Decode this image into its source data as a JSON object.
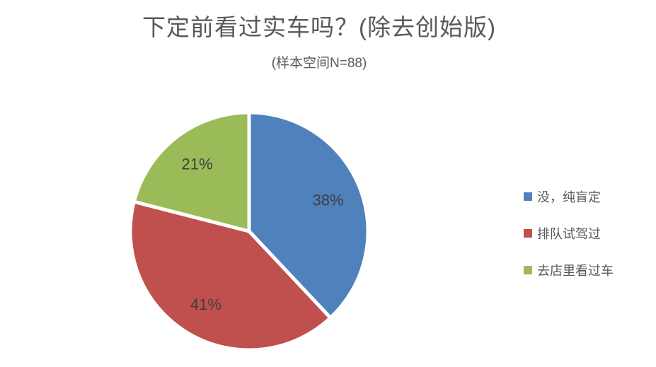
{
  "chart": {
    "title": "下定前看过实车吗？(除去创始版)",
    "subtitle": "(样本空间N=88)"
  },
  "chart_data": {
    "type": "pie",
    "title": "下定前看过实车吗？(除去创始版)",
    "subtitle": "(样本空间N=88)",
    "sample_size": 88,
    "unit": "percent",
    "start_angle_deg": 0,
    "direction": "clockwise",
    "legend_position": "right",
    "data_labels": "inside",
    "slices": [
      {
        "label": "没，纯盲定",
        "value": 38,
        "display": "38%",
        "color": "#4F81BD"
      },
      {
        "label": "排队试驾过",
        "value": 41,
        "display": "41%",
        "color": "#C0504D"
      },
      {
        "label": "去店里看过车",
        "value": 21,
        "display": "21%",
        "color": "#9BBB59"
      }
    ],
    "colors": {
      "title_text": "#595959",
      "label_text": "#404040",
      "background": "#ffffff",
      "slice_border": "#ffffff"
    }
  }
}
